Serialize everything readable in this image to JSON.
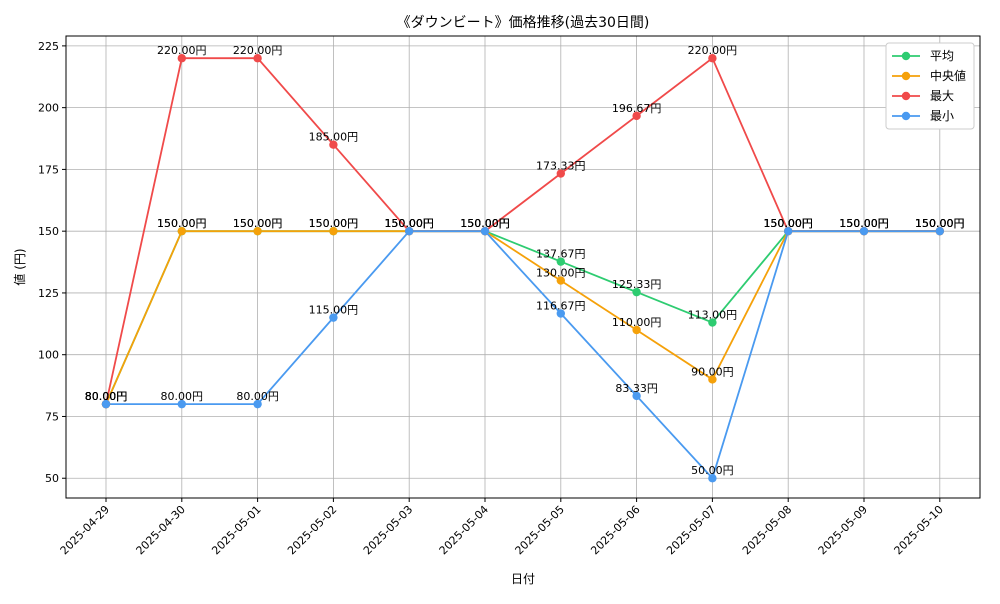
{
  "chart_data": {
    "type": "line",
    "title": "《ダウンビート》価格推移(過去30日間)",
    "xlabel": "日付",
    "ylabel": "値 (円)",
    "x": [
      "2025-04-29",
      "2025-04-30",
      "2025-05-01",
      "2025-05-02",
      "2025-05-03",
      "2025-05-04",
      "2025-05-05",
      "2025-05-06",
      "2025-05-07",
      "2025-05-08",
      "2025-05-09",
      "2025-05-10"
    ],
    "ylim": [
      42,
      229
    ],
    "yticks": [
      50,
      75,
      100,
      125,
      150,
      175,
      200,
      225
    ],
    "grid": true,
    "legend_position": "top-right",
    "value_suffix": "円",
    "series": [
      {
        "name": "平均",
        "color": "#2ecc71",
        "values": [
          80,
          150,
          150,
          150,
          150,
          150,
          137.67,
          125.33,
          113.0,
          150,
          150,
          150
        ]
      },
      {
        "name": " 中央値",
        "color": "#f5a10a",
        "values": [
          80,
          150,
          150,
          150,
          150,
          150,
          130.0,
          110.0,
          90.0,
          150,
          150,
          150
        ]
      },
      {
        "name": "最大",
        "color": "#f04a4a",
        "values": [
          80,
          220,
          220,
          185,
          150,
          150,
          173.33,
          196.67,
          220.0,
          150,
          150,
          150
        ]
      },
      {
        "name": "最小",
        "color": "#4a9af0",
        "values": [
          80,
          80,
          80,
          115,
          150,
          150,
          116.67,
          83.33,
          50.0,
          150,
          150,
          150
        ]
      }
    ]
  }
}
